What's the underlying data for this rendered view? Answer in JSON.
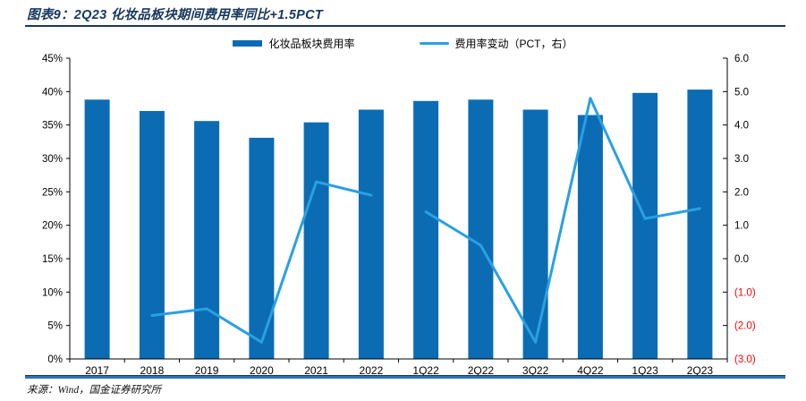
{
  "header": {
    "title": "图表9：2Q23 化妆品板块期间费用率同比+1.5PCT"
  },
  "legend": {
    "bar_label": "化妆品板块费用率",
    "line_label": "费用率变动（PCT，右）"
  },
  "footer": {
    "source": "来源：Wind，国金证券研究所"
  },
  "chart_data": {
    "type": "bar+line",
    "title": "2Q23 化妆品板块期间费用率同比+1.5PCT",
    "categories": [
      "2017",
      "2018",
      "2019",
      "2020",
      "2021",
      "2022",
      "1Q22",
      "2Q22",
      "3Q22",
      "4Q22",
      "1Q23",
      "2Q23"
    ],
    "series": [
      {
        "name": "化妆品板块费用率",
        "type": "bar",
        "axis": "left",
        "unit": "%",
        "values": [
          38.8,
          37.1,
          35.6,
          33.1,
          35.4,
          37.3,
          38.6,
          38.8,
          37.3,
          36.5,
          39.8,
          40.3
        ]
      },
      {
        "name": "费用率变动（PCT，右）",
        "type": "line",
        "axis": "right",
        "unit": "PCT",
        "segments": [
          {
            "start_index": 1,
            "values": [
              -1.7,
              -1.5,
              -2.5,
              2.3,
              1.9
            ]
          },
          {
            "start_index": 6,
            "values": [
              1.4,
              0.4,
              -2.5,
              4.8,
              1.2,
              1.5
            ]
          }
        ]
      }
    ],
    "left_axis": {
      "min": 0,
      "max": 45,
      "step": 5,
      "format": "percent",
      "ticks": [
        "0%",
        "5%",
        "10%",
        "15%",
        "20%",
        "25%",
        "30%",
        "35%",
        "40%",
        "45%"
      ]
    },
    "right_axis": {
      "min": -3,
      "max": 6,
      "step": 1,
      "format": "paren-negative",
      "negative_color": "#ff0000",
      "ticks": [
        "(3.0)",
        "(2.0)",
        "(1.0)",
        "0.0",
        "1.0",
        "2.0",
        "3.0",
        "4.0",
        "5.0",
        "6.0"
      ]
    },
    "grid": false,
    "legend_position": "top",
    "colors": {
      "bar": "#0b6cb4",
      "line": "#2aa0e2",
      "axis": "#000000",
      "title": "#17375e",
      "rule": "#2e74b5"
    }
  }
}
